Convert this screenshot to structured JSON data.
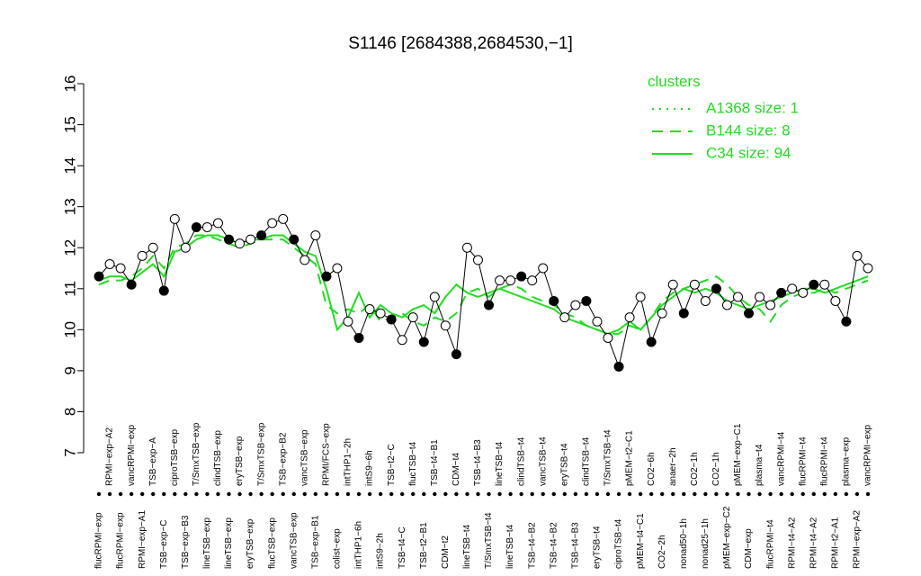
{
  "chart_data": {
    "type": "line",
    "title": "S1146 [2684388,2684530,−1]",
    "categories": [
      "flucRPMI−exp",
      "RPMI−exp−A2",
      "flucRPMI−exp",
      "vancRPMI−exp",
      "RPMI−exp−A1",
      "TSB−exp−A",
      "TSB−exp−C",
      "ciproTSB−exp",
      "TSB−exp−B3",
      "T/SmxTSB−exp",
      "lineTSB−exp",
      "clindTSB−exp",
      "lineTSB−exp",
      "eryTSB−exp",
      "eryTSB−exp",
      "T/SmxTSB−exp",
      "flucTSB−exp",
      "TSB−exp−B2",
      "vancTSB−exp",
      "vancTSB−exp",
      "TSB−exp−B1",
      "RPMI/FCS−exp",
      "colist−exp",
      "intTHP1−2h",
      "intTHP1−6h",
      "intS9−6h",
      "intS9−2h",
      "TSB−t2−C",
      "TSB−t4−C",
      "flucTSB−t4",
      "TSB−t2−B1",
      "TSB−t4−B1",
      "CDM−t2",
      "CDM−t4",
      "lineTSB−t4",
      "TSB−t4−B3",
      "T/SmxTSB−t4",
      "lineTSB−t4",
      "lineTSB−t4",
      "clindTSB−t4",
      "TSB−t4−B2",
      "vancTSB−t4",
      "TSB−t4−B2",
      "eryTSB−t4",
      "TSB−t4−B3",
      "clindTSB−t4",
      "eryTSB−t4",
      "T/SmxTSB−t4",
      "ciproTSB−t4",
      "pMEM−t2−C1",
      "pMEM−t4−C1",
      "CO2−6h",
      "CO2−2h",
      "anaer−2h",
      "nonad50−1h",
      "CO2−1h",
      "nonad25−1h",
      "CO2−1h",
      "pMEM−exp−C2",
      "pMEM−exp−C1",
      "CDM−exp",
      "plasma−t4",
      "flucRPMI−t4",
      "vancRPMI−t4",
      "RPMI−t4−A2",
      "flucRPMI−t4",
      "RPMI−t4−A2",
      "flucRPMI−t4",
      "RPMI−t2−A1",
      "plasma−exp",
      "RPMI−exp−A2",
      "vancRPMI−exp"
    ],
    "values": [
      11.3,
      11.6,
      11.5,
      11.1,
      11.8,
      12.0,
      10.95,
      12.7,
      12.0,
      12.5,
      12.5,
      12.6,
      12.2,
      12.1,
      12.2,
      12.3,
      12.6,
      12.7,
      12.2,
      11.7,
      12.3,
      11.3,
      11.5,
      10.2,
      9.8,
      10.5,
      10.4,
      10.25,
      9.75,
      10.3,
      9.7,
      10.8,
      10.1,
      9.4,
      12.0,
      11.7,
      10.6,
      11.2,
      11.2,
      11.3,
      11.2,
      11.5,
      10.7,
      10.3,
      10.6,
      10.7,
      10.2,
      9.8,
      9.1,
      10.3,
      10.8,
      9.7,
      10.4,
      11.1,
      10.4,
      11.1,
      10.7,
      11.0,
      10.6,
      10.8,
      10.4,
      10.8,
      10.6,
      10.9,
      11.0,
      10.9,
      11.1,
      11.1,
      10.7,
      10.2,
      11.8,
      11.5
    ],
    "series": [
      {
        "name": "C34 size: 94",
        "color": "#22dd22",
        "values": [
          11.2,
          11.3,
          11.3,
          11.2,
          11.4,
          11.6,
          11.3,
          11.9,
          12.0,
          12.2,
          12.3,
          12.3,
          12.2,
          12.1,
          12.2,
          12.2,
          12.3,
          12.3,
          12.1,
          11.9,
          11.8,
          11.0,
          10.0,
          10.3,
          10.9,
          10.3,
          10.6,
          10.4,
          10.3,
          10.5,
          10.6,
          10.4,
          10.8,
          11.1,
          10.9,
          10.8,
          10.9,
          11.0,
          10.9,
          10.8,
          10.7,
          10.6,
          10.5,
          10.3,
          10.2,
          10.1,
          10.0,
          9.9,
          10.0,
          10.2,
          10.0,
          10.3,
          10.6,
          10.8,
          11.0,
          10.9,
          11.0,
          10.9,
          10.7,
          10.6,
          10.5,
          10.6,
          10.7,
          10.8,
          10.9,
          11.0,
          11.0,
          10.9,
          11.0,
          11.1,
          11.2,
          11.3
        ]
      },
      {
        "name": "B144 size: 8",
        "color": "#22dd22",
        "values": [
          11.1,
          11.2,
          11.2,
          11.3,
          11.5,
          11.8,
          11.5,
          12.0,
          12.1,
          12.3,
          12.3,
          12.2,
          12.1,
          12.0,
          12.1,
          12.2,
          12.2,
          12.2,
          12.0,
          11.8,
          11.6,
          10.6,
          10.4,
          10.5,
          10.4,
          10.6,
          10.2,
          10.3,
          10.4,
          10.2,
          10.1,
          10.3,
          10.2,
          10.4,
          10.9,
          11.0,
          10.8,
          11.0,
          11.1,
          11.0,
          10.8,
          10.7,
          10.6,
          10.4,
          10.3,
          10.1,
          10.0,
          9.9,
          9.9,
          10.1,
          10.0,
          10.3,
          10.7,
          10.9,
          11.0,
          11.1,
          11.2,
          11.3,
          11.1,
          10.8,
          10.6,
          10.5,
          10.2,
          10.6,
          10.8,
          10.9,
          10.9,
          11.0,
          10.9,
          11.0,
          11.1,
          11.2
        ]
      },
      {
        "name": "A1368 size: 1",
        "color": "#22dd22"
      }
    ],
    "legend_title": "clusters",
    "ylim": [
      7,
      16
    ],
    "yticks": [
      7,
      8,
      9,
      10,
      11,
      12,
      13,
      14,
      15,
      16
    ]
  }
}
